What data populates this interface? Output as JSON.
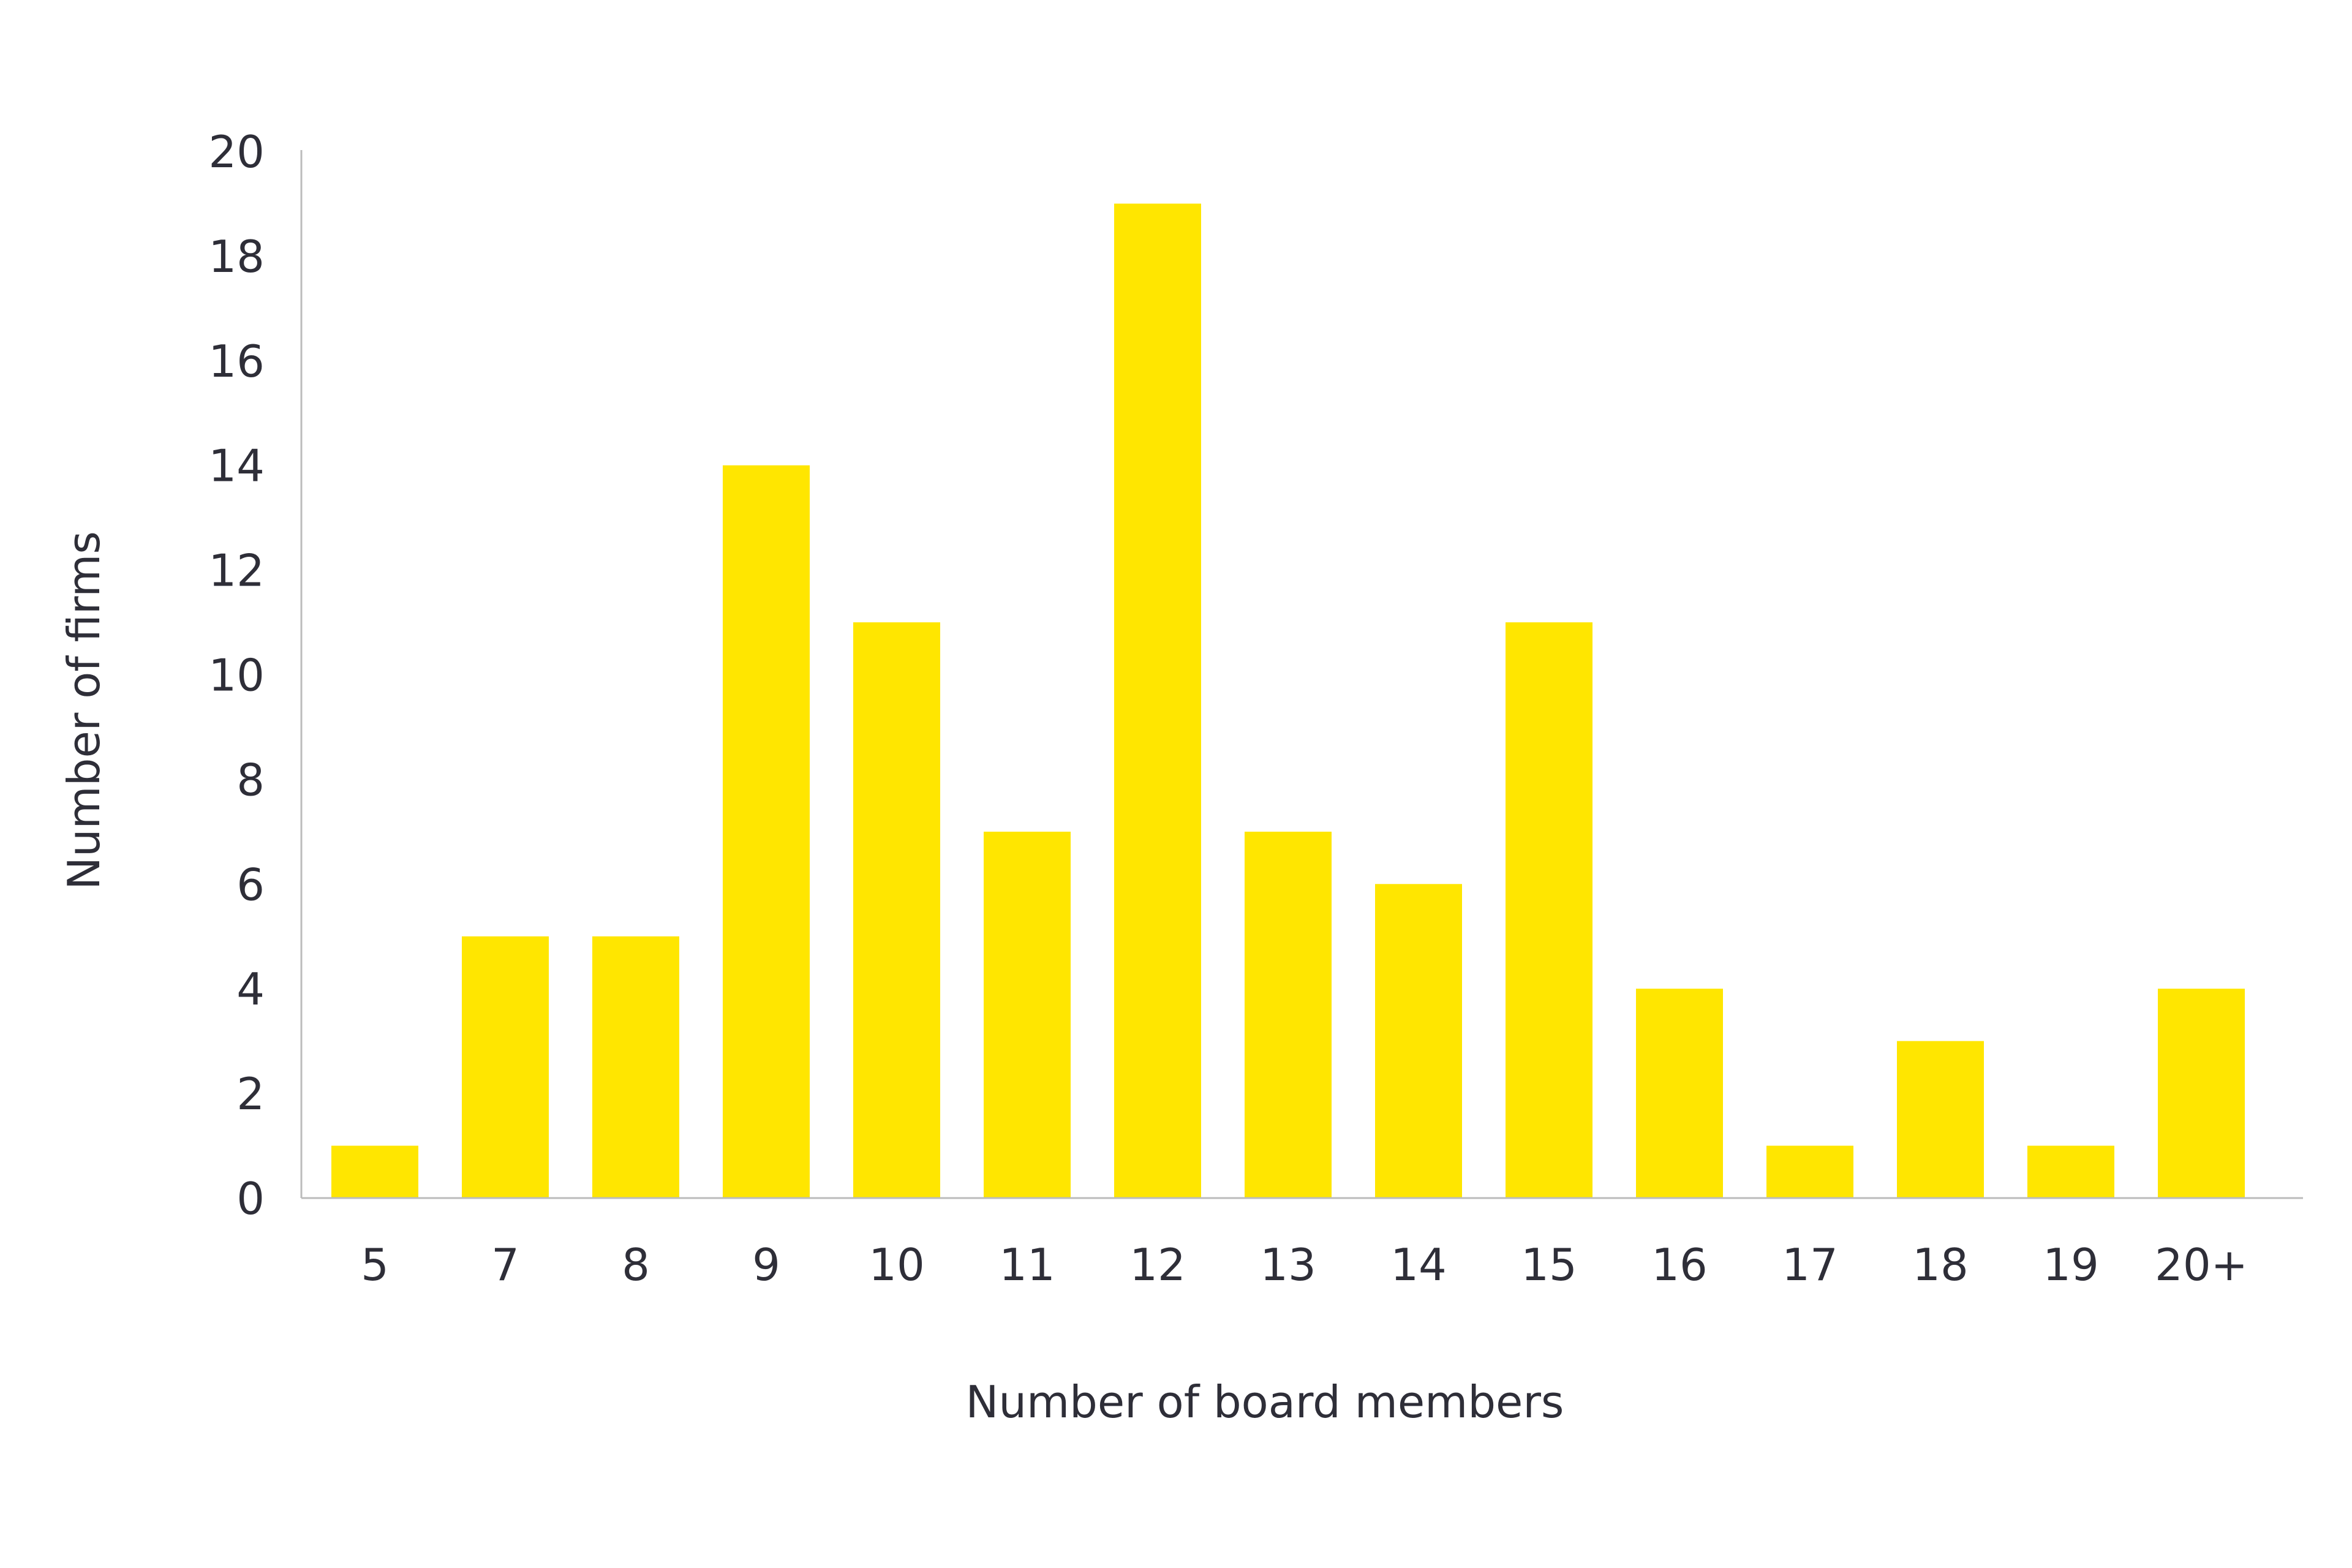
{
  "chart_data": {
    "type": "bar",
    "title": "",
    "xlabel": "Number of board members",
    "ylabel": "Number of firms",
    "categories": [
      "5",
      "7",
      "8",
      "9",
      "10",
      "11",
      "12",
      "13",
      "14",
      "15",
      "16",
      "17",
      "18",
      "19",
      "20+"
    ],
    "values": [
      1,
      5,
      5,
      14,
      11,
      7,
      19,
      7,
      6,
      11,
      4,
      1,
      3,
      1,
      4
    ],
    "ylim": [
      0,
      20
    ],
    "yticks": [
      "0",
      "2",
      "4",
      "6",
      "8",
      "10",
      "12",
      "14",
      "16",
      "18",
      "20"
    ],
    "grid": false,
    "legend": "none",
    "bar_color": "#ffe600",
    "axis_color": "#bcbcbc",
    "text_color": "#2e2e38"
  }
}
